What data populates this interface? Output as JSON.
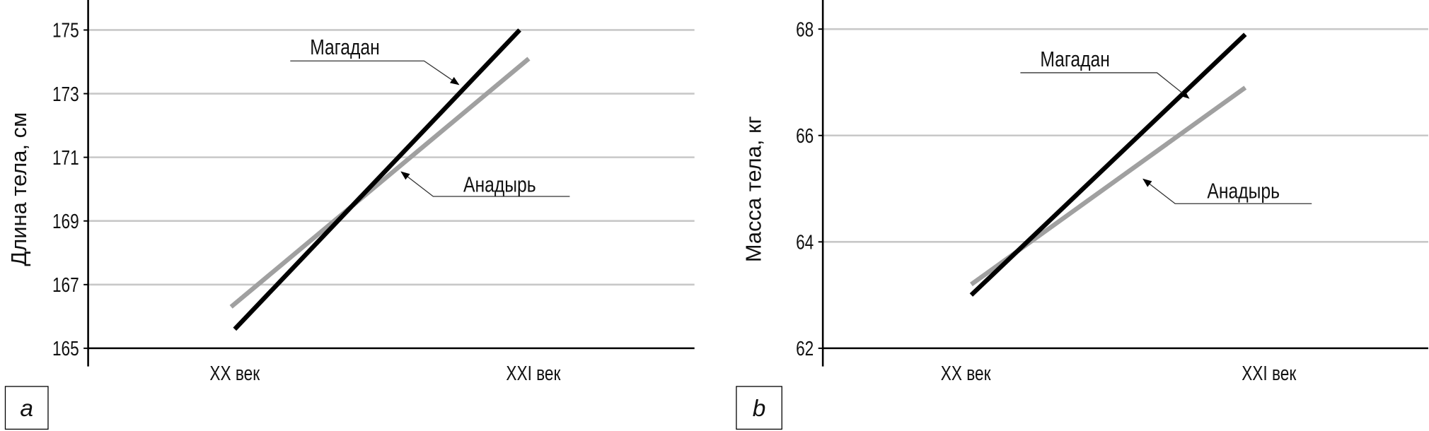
{
  "chart_data": [
    {
      "type": "line",
      "panel_label": "a",
      "ylabel": "Длина тела, см",
      "xlabel": "",
      "categories": [
        "XX век",
        "XXI век"
      ],
      "yticks": [
        165,
        167,
        169,
        171,
        173,
        175
      ],
      "ylim": [
        165,
        175
      ],
      "grid": true,
      "series": [
        {
          "name": "Магадан",
          "values": [
            165.6,
            175.0
          ],
          "color": "#000000"
        },
        {
          "name": "Анадырь",
          "values": [
            166.3,
            174.1
          ],
          "color": "#a0a0a0"
        }
      ]
    },
    {
      "type": "line",
      "panel_label": "b",
      "ylabel": "Масса тела, кг",
      "xlabel": "",
      "categories": [
        "XX век",
        "XXI век"
      ],
      "yticks": [
        62,
        64,
        66,
        68
      ],
      "ylim": [
        62,
        68
      ],
      "grid": true,
      "series": [
        {
          "name": "Магадан",
          "values": [
            63.0,
            67.9
          ],
          "color": "#000000"
        },
        {
          "name": "Анадырь",
          "values": [
            63.2,
            66.9
          ],
          "color": "#a0a0a0"
        }
      ]
    }
  ]
}
